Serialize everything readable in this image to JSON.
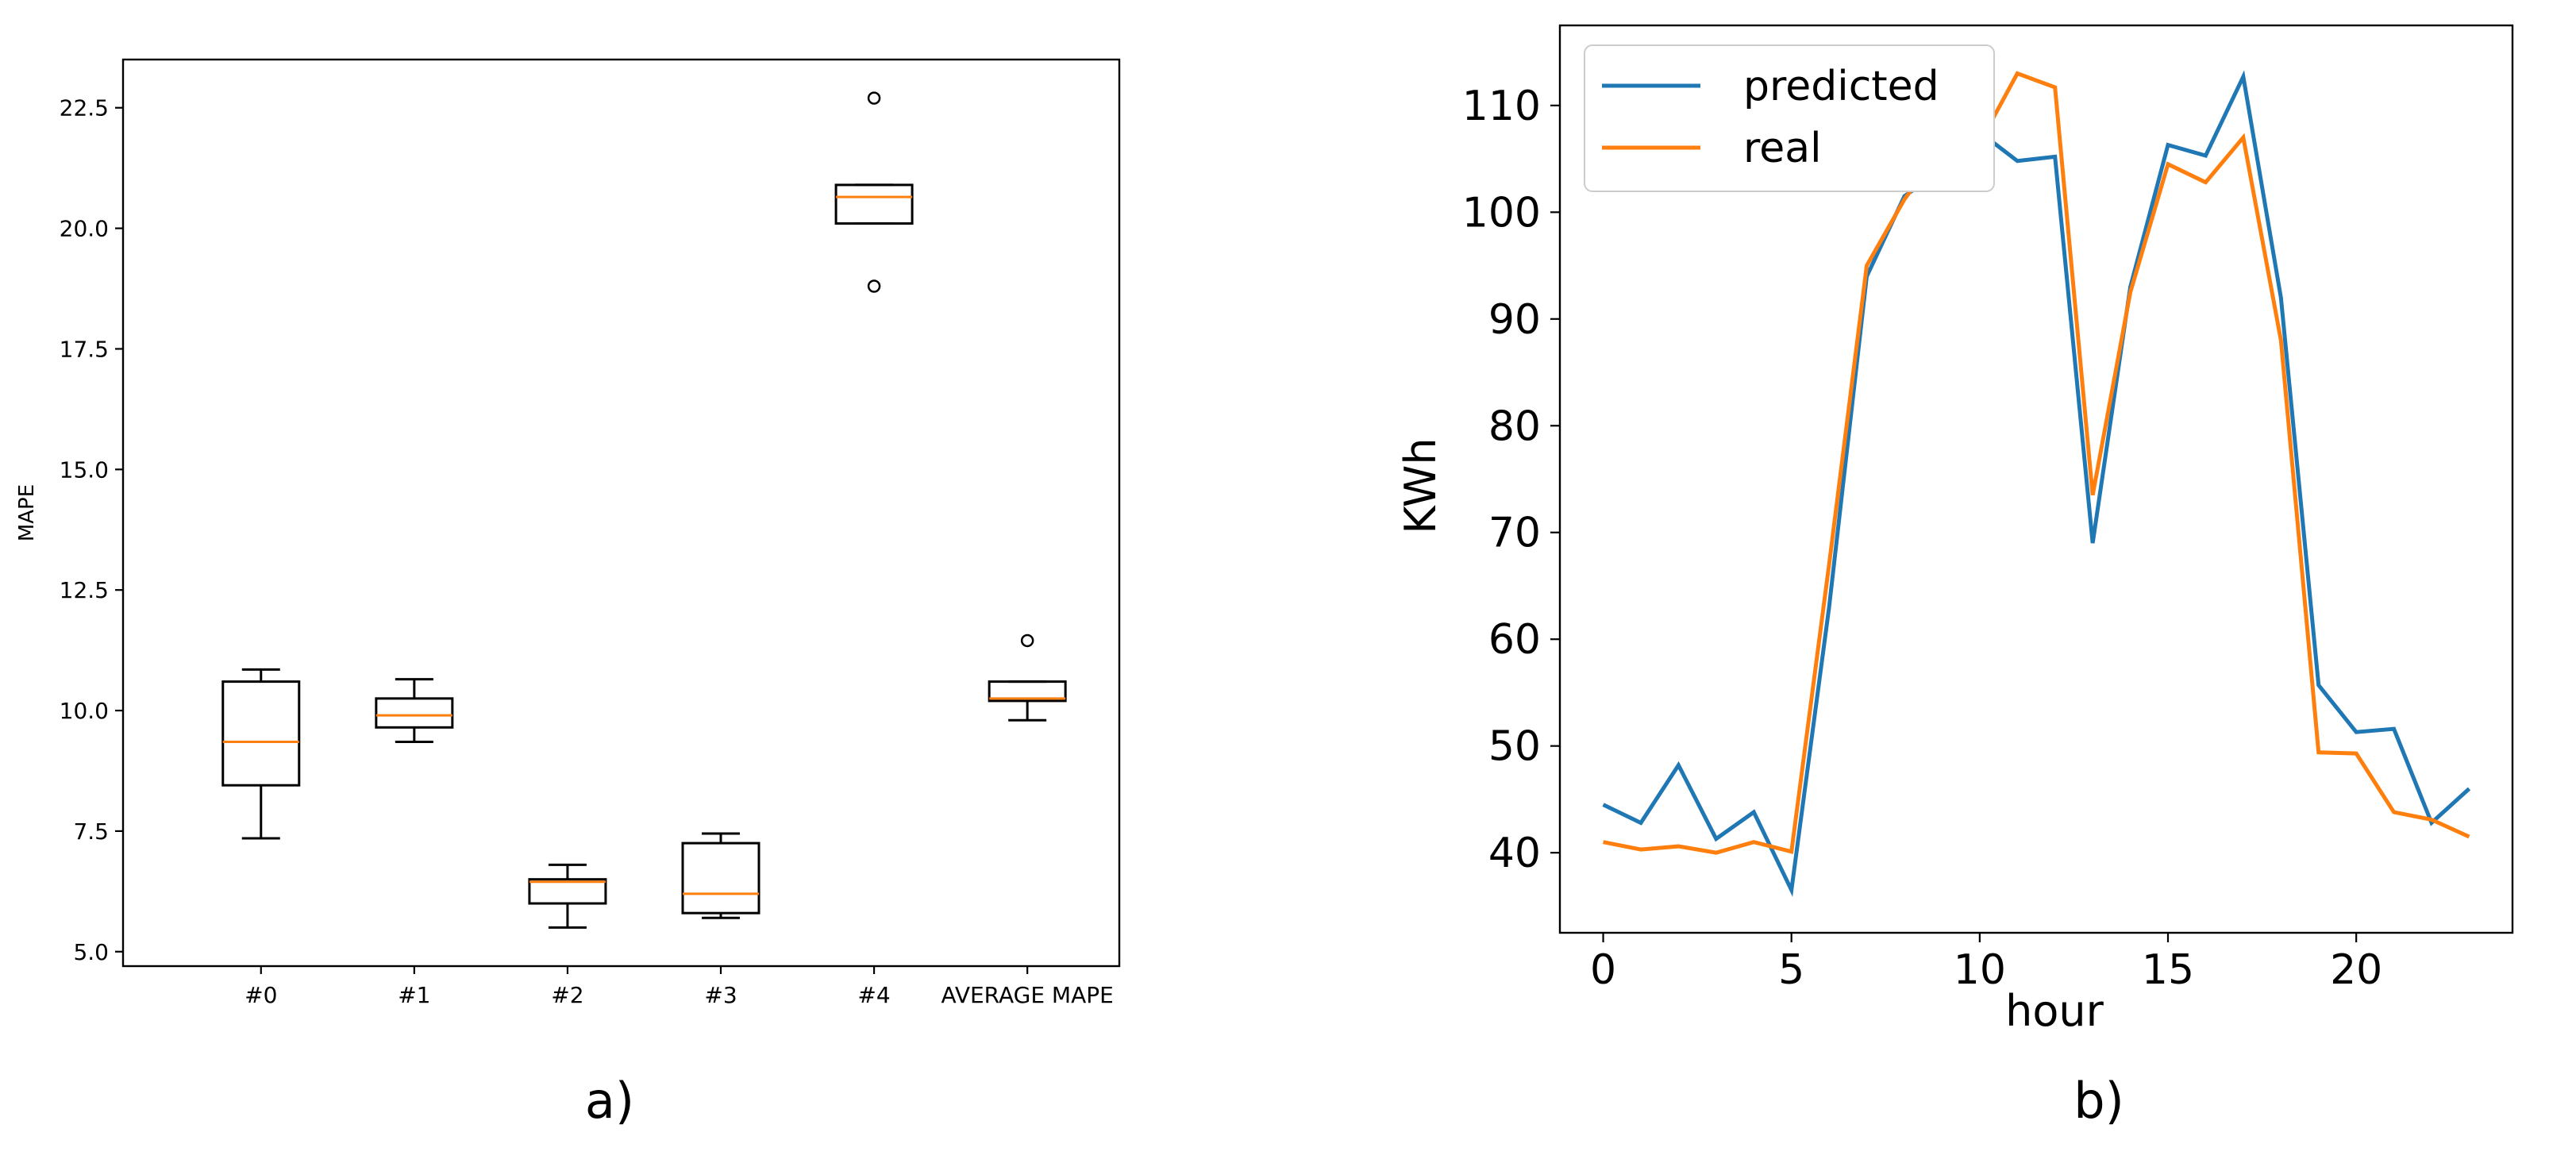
{
  "chart_data": [
    {
      "panel_label": "a)",
      "type": "box",
      "title": "",
      "xlabel": "",
      "ylabel": "MAPE",
      "ylim": [
        4.7,
        23.5
      ],
      "yticks": [
        "5.0",
        "7.5",
        "10.0",
        "12.5",
        "15.0",
        "17.5",
        "20.0",
        "22.5"
      ],
      "categories": [
        "#0",
        "#1",
        "#2",
        "#3",
        "#4",
        "AVERAGE MAPE"
      ],
      "boxes": [
        {
          "whislo": 7.35,
          "q1": 8.45,
          "med": 9.35,
          "q3": 10.6,
          "whishi": 10.85,
          "fliers": []
        },
        {
          "whislo": 9.35,
          "q1": 9.65,
          "med": 9.9,
          "q3": 10.25,
          "whishi": 10.65,
          "fliers": []
        },
        {
          "whislo": 5.5,
          "q1": 6.0,
          "med": 6.45,
          "q3": 6.5,
          "whishi": 6.8,
          "fliers": []
        },
        {
          "whislo": 5.7,
          "q1": 5.8,
          "med": 6.2,
          "q3": 7.25,
          "whishi": 7.45,
          "fliers": []
        },
        {
          "whislo": 20.1,
          "q1": 20.1,
          "med": 20.65,
          "q3": 20.9,
          "whishi": 20.9,
          "fliers": [
            22.7,
            18.8
          ]
        },
        {
          "whislo": 9.8,
          "q1": 10.2,
          "med": 10.25,
          "q3": 10.6,
          "whishi": 10.6,
          "fliers": [
            11.45
          ]
        }
      ],
      "colors": {
        "box": "#000000",
        "median": "#ff7f0e"
      },
      "grid": false
    },
    {
      "panel_label": "b)",
      "type": "line",
      "title": "",
      "xlabel": "hour",
      "ylabel": "KWh",
      "xlim": [
        -1.15,
        24.15
      ],
      "ylim": [
        32.5,
        117.5
      ],
      "xticks": [
        0,
        5,
        10,
        15,
        20
      ],
      "yticks": [
        40,
        50,
        60,
        70,
        80,
        90,
        100,
        110
      ],
      "x": [
        0,
        1,
        2,
        3,
        4,
        5,
        6,
        7,
        8,
        9,
        10,
        11,
        12,
        13,
        14,
        15,
        16,
        17,
        18,
        19,
        20,
        21,
        22,
        23
      ],
      "series": [
        {
          "name": "predicted",
          "color": "#1f77b4",
          "values": [
            44.5,
            42.8,
            48.2,
            41.3,
            43.8,
            36.5,
            63.0,
            94.0,
            101.5,
            104.0,
            107.5,
            104.8,
            105.2,
            69.0,
            93.0,
            106.3,
            105.3,
            112.7,
            92.0,
            55.7,
            51.3,
            51.6,
            42.8,
            46.0
          ]
        },
        {
          "name": "real",
          "color": "#ff7f0e",
          "values": [
            41.0,
            40.3,
            40.6,
            40.0,
            41.0,
            40.1,
            67.0,
            95.0,
            101.2,
            106.0,
            106.5,
            113.0,
            111.7,
            73.5,
            92.5,
            104.5,
            102.8,
            107.0,
            88.0,
            49.4,
            49.3,
            43.8,
            43.1,
            41.5
          ]
        }
      ],
      "legend_position": "top-left",
      "grid": false
    }
  ]
}
